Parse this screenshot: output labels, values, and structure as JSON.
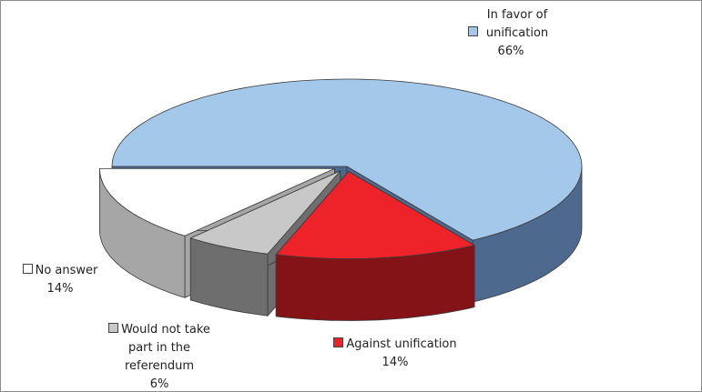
{
  "chart_data": {
    "type": "pie",
    "view": "3d-exploded",
    "categories": [
      "In favor of unification",
      "Against unification",
      "Would not take part in the referendum",
      "No answer"
    ],
    "values": [
      66,
      14,
      6,
      14
    ],
    "value_labels": [
      "66%",
      "14%",
      "6%",
      "14%"
    ],
    "colors": [
      "#a4c8ea",
      "#ee2229",
      "#c8c8c8",
      "#ffffff"
    ]
  }
}
